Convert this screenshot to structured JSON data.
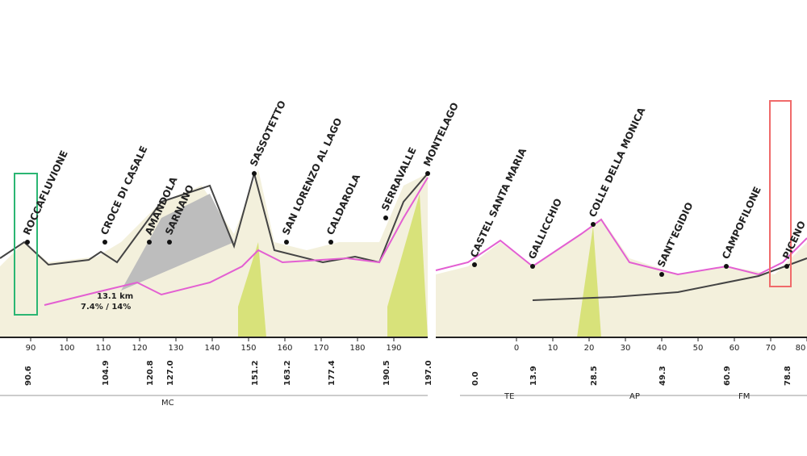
{
  "left_axis": {
    "ticks": [
      90,
      100,
      110,
      120,
      130,
      140,
      150,
      160,
      170,
      180,
      190
    ]
  },
  "right_axis": {
    "ticks": [
      0,
      10,
      20,
      30,
      40,
      50,
      60,
      70,
      80
    ]
  },
  "left_places": [
    {
      "km": "90.6",
      "label": "ROCCAFLUVIONE"
    },
    {
      "km": "104.9",
      "label": "CROCE DI CASALE"
    },
    {
      "km": "120.8",
      "label": "AMANDOLA"
    },
    {
      "km": "127.0",
      "label": "SARNANO"
    },
    {
      "km": "151.2",
      "label": "SASSOTETTO"
    },
    {
      "km": "163.2",
      "label": "SAN LORENZO AL LAGO"
    },
    {
      "km": "177.4",
      "label": "CALDAROLA"
    },
    {
      "km": "190.5",
      "label": "SERRAVALLE"
    },
    {
      "km": "197.0",
      "label": "MONTELAGO"
    }
  ],
  "right_places": [
    {
      "km": "0.0",
      "label": "CASTEL SANTA MARIA"
    },
    {
      "km": "13.9",
      "label": "GALLICCHIO"
    },
    {
      "km": "28.5",
      "label": "COLLE DELLA MONICA"
    },
    {
      "km": "49.3",
      "label": "SANT'EGIDIO"
    },
    {
      "km": "60.9",
      "label": "CAMPOFILONE"
    },
    {
      "km": "78.8",
      "label": "PICENO"
    }
  ],
  "climb_info": {
    "length": "13.1 km",
    "gradient": "7.4% / 14%"
  },
  "regions_left": [
    "MC"
  ],
  "regions_right": [
    "TE",
    "AP",
    "FM"
  ]
}
